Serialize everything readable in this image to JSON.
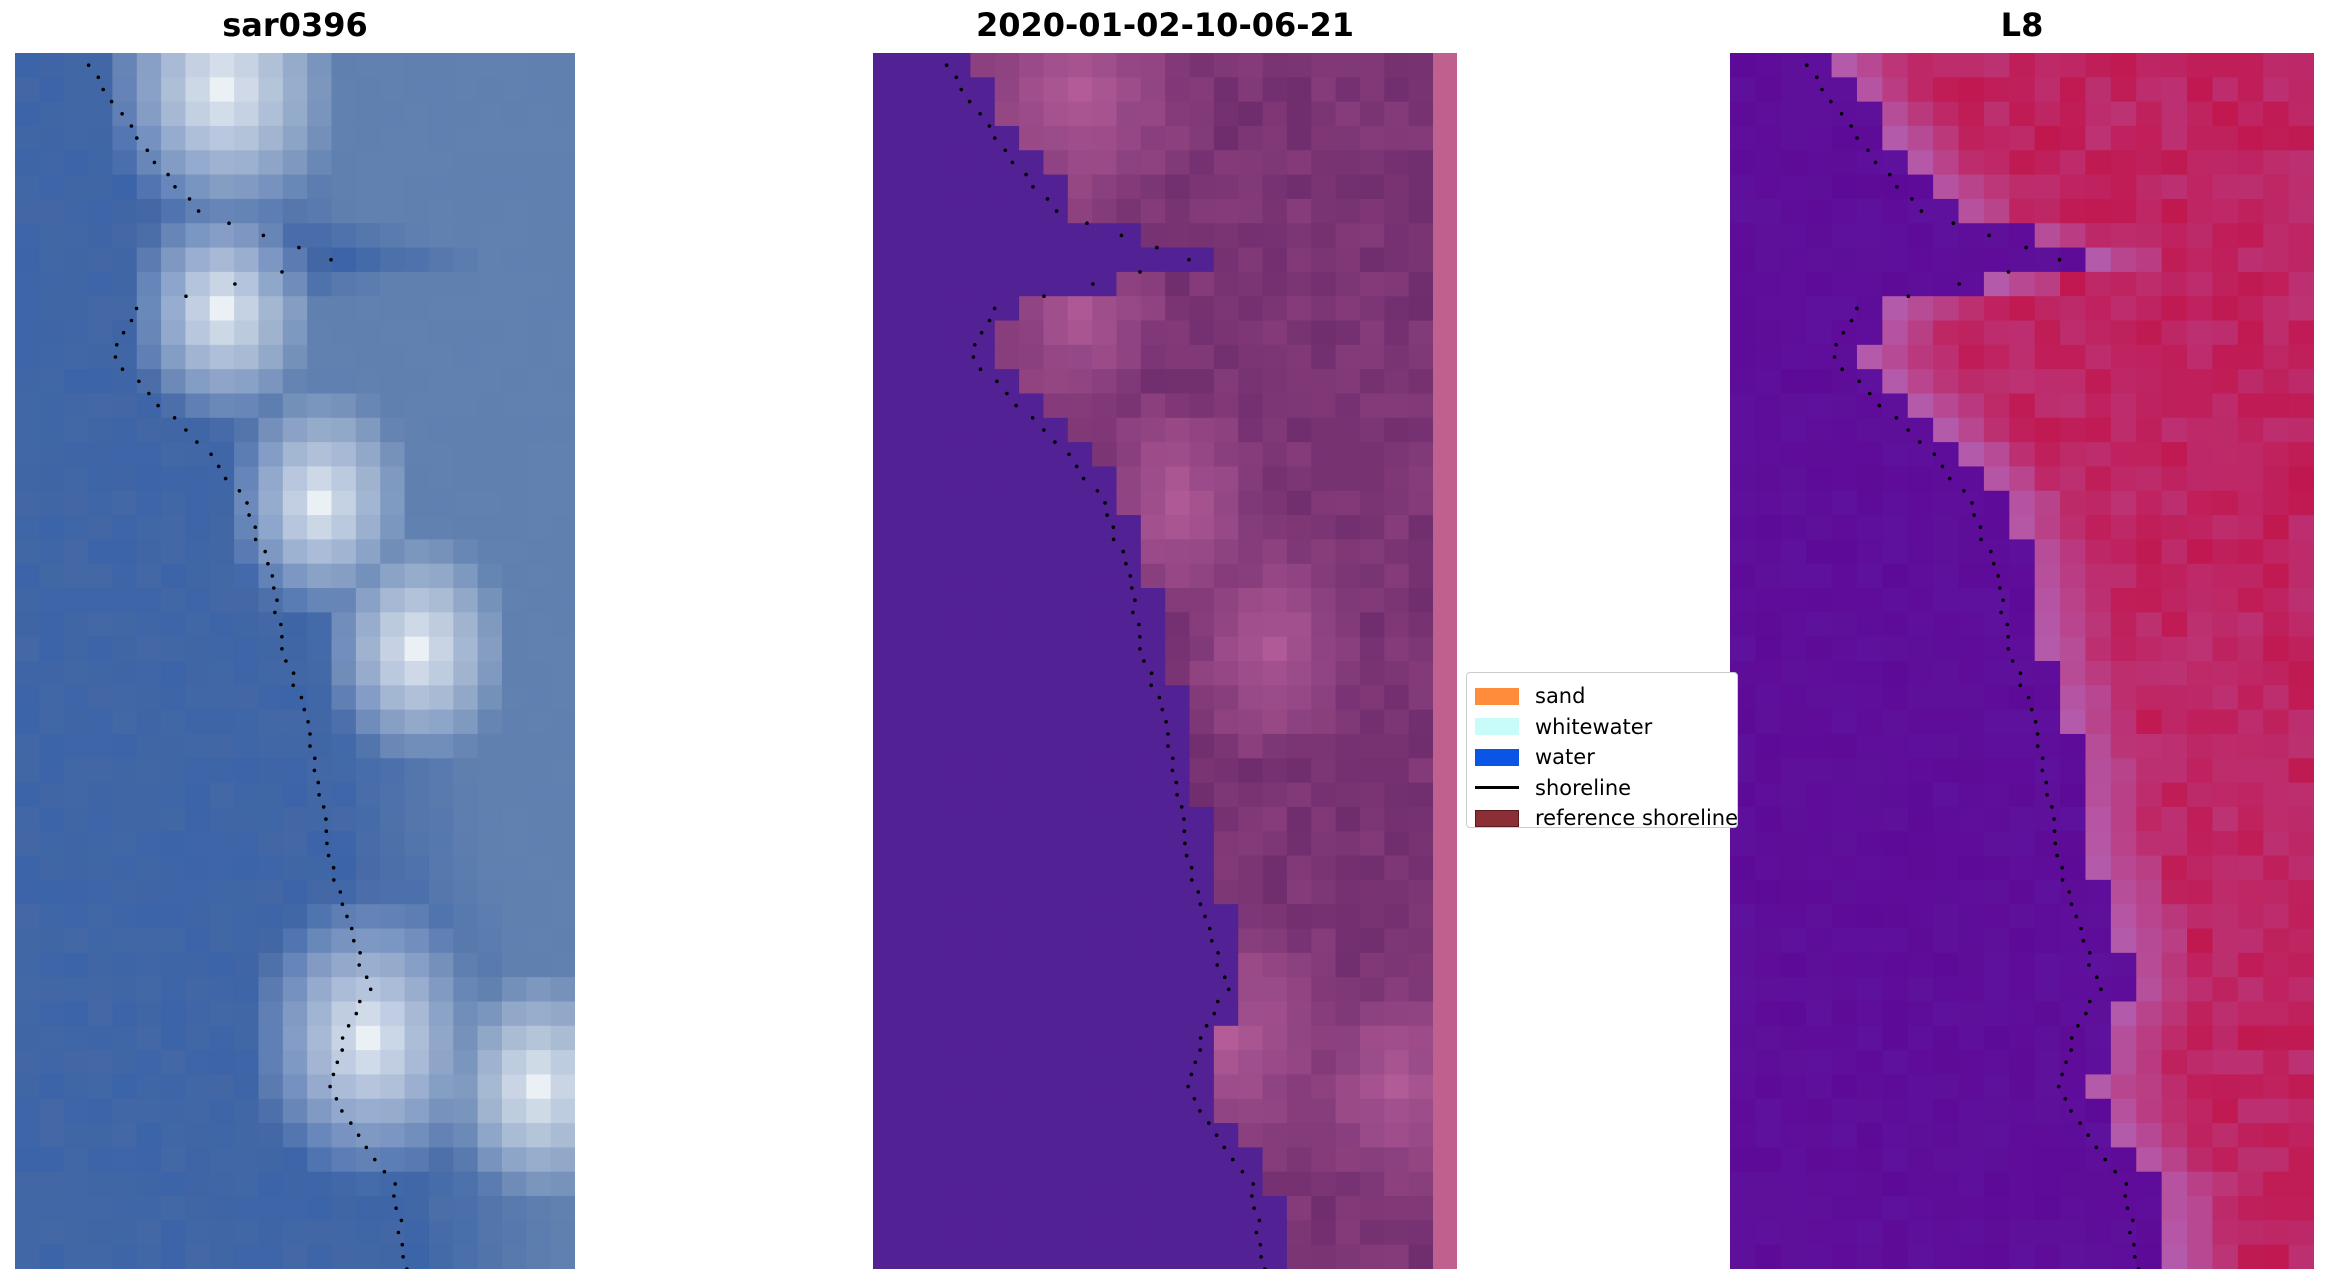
{
  "panels": [
    {
      "title": "sar0396",
      "type": "rgb"
    },
    {
      "title": "2020-01-02-10-06-21",
      "type": "classified"
    },
    {
      "title": "L8",
      "type": "mndwi"
    }
  ],
  "legend": {
    "items": [
      {
        "label": "sand",
        "kind": "patch",
        "color": "#ff8c3a"
      },
      {
        "label": "whitewater",
        "kind": "patch",
        "color": "#c8fcfa"
      },
      {
        "label": "water",
        "kind": "patch",
        "color": "#0a55e6"
      },
      {
        "label": "shoreline",
        "kind": "line",
        "color": "#000000"
      },
      {
        "label": "reference shoreline",
        "kind": "patch",
        "color": "#8b2e35"
      }
    ]
  },
  "colors": {
    "rgb_water": "#3c64a8",
    "class_water": "#522194",
    "class_land": "#6f2d6e",
    "class_strip": "#c0608f",
    "mndwi_water": "#5e0a98",
    "mndwi_land": "#c1174f",
    "shoreline_dots": "#000000"
  }
}
